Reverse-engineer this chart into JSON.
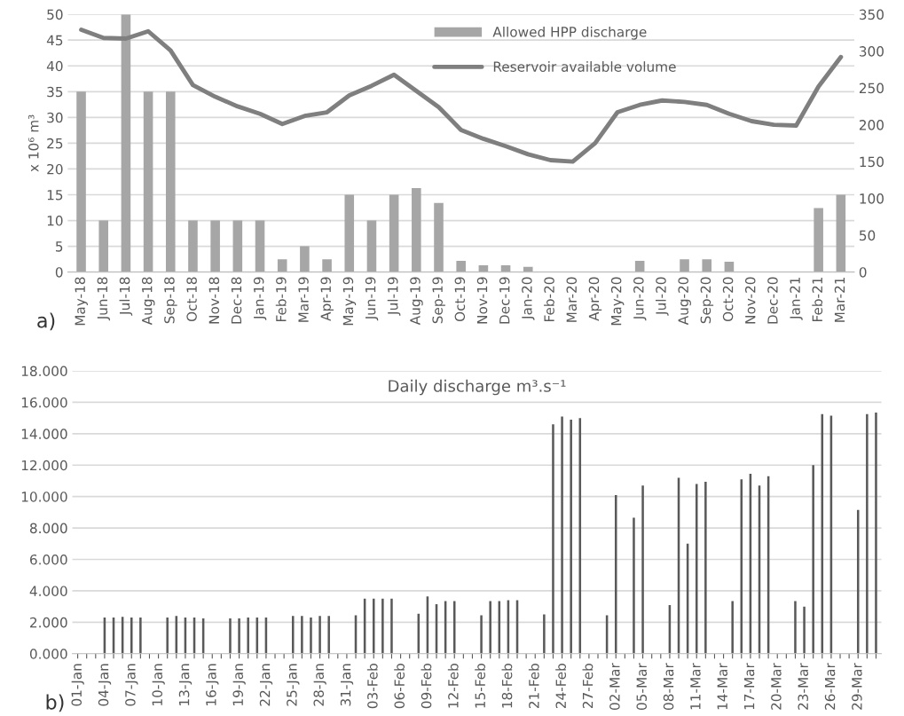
{
  "chart_data": [
    {
      "type": "bar",
      "ylabel": "x 10⁶ m³",
      "annotations": [
        "a)"
      ],
      "categories": [
        "May-18",
        "Jun-18",
        "Jul-18",
        "Aug-18",
        "Sep-18",
        "Oct-18",
        "Nov-18",
        "Dec-18",
        "Jan-19",
        "Feb-19",
        "Mar-19",
        "Apr-19",
        "May-19",
        "Jun-19",
        "Jul-19",
        "Aug-19",
        "Sep-19",
        "Oct-19",
        "Nov-19",
        "Dec-19",
        "Jan-20",
        "Feb-20",
        "Mar-20",
        "Apr-20",
        "May-20",
        "Jun-20",
        "Jul-20",
        "Aug-20",
        "Sep-20",
        "Oct-20",
        "Nov-20",
        "Dec-20",
        "Jan-21",
        "Feb-21",
        "Mar-21"
      ],
      "series": [
        {
          "name": "Allowed HPP discharge",
          "color": "#a6a6a6",
          "values": [
            35,
            10,
            50,
            35,
            35,
            10,
            10,
            10,
            10,
            2.5,
            5,
            2.5,
            15,
            10,
            15,
            16.3,
            13.4,
            2.2,
            1.3,
            1.3,
            1.0,
            0,
            0,
            0,
            0,
            2.2,
            0,
            2.5,
            2.5,
            2.0,
            0,
            0,
            0,
            12.4,
            15
          ]
        },
        {
          "name": "Reservoir available volume",
          "type": "line",
          "axis": "y2",
          "color": "#7f7f7f",
          "values": [
            329,
            318,
            317,
            327,
            301,
            254,
            238,
            225,
            215,
            201,
            212,
            217,
            240,
            253,
            268,
            246,
            224,
            193,
            181,
            171,
            160,
            152,
            150,
            175,
            217,
            227,
            233,
            231,
            227,
            215,
            205,
            200,
            199,
            252,
            292
          ]
        }
      ],
      "ylim": [
        0,
        50
      ],
      "yticks": [
        0,
        5,
        10,
        15,
        20,
        25,
        30,
        35,
        40,
        45,
        50
      ],
      "y2lim": [
        0,
        350
      ],
      "y2ticks": [
        0,
        50,
        100,
        150,
        200,
        250,
        300,
        350
      ],
      "grid": "y",
      "legend": "top"
    },
    {
      "type": "bar",
      "title": "Daily discharge m³.s⁻¹",
      "annotations": [
        "b)"
      ],
      "categories": [
        "01-Jan",
        null,
        null,
        "04-Jan",
        null,
        null,
        "07-Jan",
        null,
        null,
        "10-Jan",
        null,
        null,
        "13-Jan",
        null,
        null,
        "16-Jan",
        null,
        null,
        "19-Jan",
        null,
        null,
        "22-Jan",
        null,
        null,
        "25-Jan",
        null,
        null,
        "28-Jan",
        null,
        null,
        "31-Jan",
        null,
        null,
        "03-Feb",
        null,
        null,
        "06-Feb",
        null,
        null,
        "09-Feb",
        null,
        null,
        "12-Feb",
        null,
        null,
        "15-Feb",
        null,
        null,
        "18-Feb",
        null,
        null,
        "21-Feb",
        null,
        null,
        "24-Feb",
        null,
        null,
        "27-Feb",
        null,
        null,
        "02-Mar",
        null,
        null,
        "05-Mar",
        null,
        null,
        "08-Mar",
        null,
        null,
        "11-Mar",
        null,
        null,
        "14-Mar",
        null,
        null,
        "17-Mar",
        null,
        null,
        "20-Mar",
        null,
        null,
        "23-Mar",
        null,
        null,
        "26-Mar",
        null,
        null,
        "29-Mar",
        null,
        null
      ],
      "series": [
        {
          "color": "#595959",
          "values": [
            0,
            0,
            0,
            2.3,
            2.3,
            2.35,
            2.3,
            2.3,
            0,
            0,
            2.3,
            2.4,
            2.3,
            2.3,
            2.25,
            0,
            0,
            2.25,
            2.25,
            2.3,
            2.3,
            2.3,
            0,
            0,
            2.4,
            2.4,
            2.3,
            2.4,
            2.4,
            0,
            0,
            2.45,
            3.5,
            3.5,
            3.5,
            3.5,
            0,
            0,
            2.55,
            3.65,
            3.15,
            3.35,
            3.35,
            0,
            0,
            2.45,
            3.35,
            3.35,
            3.4,
            3.4,
            0,
            0,
            2.5,
            14.6,
            15.1,
            14.9,
            15.0,
            0,
            0,
            2.45,
            10.1,
            0,
            8.65,
            10.7,
            0,
            0,
            3.1,
            11.2,
            7.0,
            10.8,
            10.95,
            0,
            0,
            3.35,
            11.1,
            11.45,
            10.7,
            11.3,
            0,
            0,
            3.35,
            3.0,
            12.0,
            15.25,
            15.15,
            0,
            0,
            9.15,
            15.25,
            15.35
          ]
        }
      ],
      "ylim": [
        0,
        18
      ],
      "yticks": [
        {
          "value": 0,
          "label": "0.000"
        },
        {
          "value": 2,
          "label": "2.000"
        },
        {
          "value": 4,
          "label": "4.000"
        },
        {
          "value": 6,
          "label": "6.000"
        },
        {
          "value": 8,
          "label": "8.000"
        },
        {
          "value": 10,
          "label": "10.000"
        },
        {
          "value": 12,
          "label": "12.000"
        },
        {
          "value": 14,
          "label": "14.000"
        },
        {
          "value": 16,
          "label": "16.000"
        },
        {
          "value": 18,
          "label": "18.000"
        }
      ],
      "grid": "y"
    }
  ]
}
